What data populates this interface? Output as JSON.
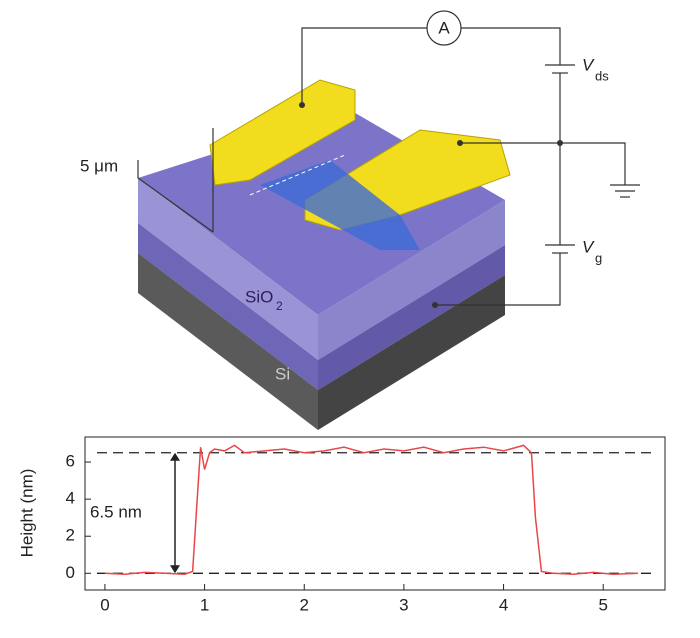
{
  "diagram_labels": {
    "ammeter": "A",
    "vds": "V",
    "vds_sub": "ds",
    "vg": "V",
    "vg_sub": "g",
    "scale": "5 μm",
    "oxide": "SiO",
    "oxide_sub": "2",
    "substrate": "Si"
  },
  "chart_data": {
    "type": "line",
    "y_label": "Height (nm)",
    "x": [
      0,
      0.2,
      0.4,
      0.6,
      0.8,
      0.88,
      0.92,
      0.96,
      1.0,
      1.05,
      1.1,
      1.2,
      1.3,
      1.4,
      1.6,
      1.8,
      2.0,
      2.2,
      2.4,
      2.6,
      2.8,
      3.0,
      3.2,
      3.4,
      3.6,
      3.8,
      4.0,
      4.2,
      4.28,
      4.32,
      4.38,
      4.5,
      4.7,
      4.9,
      5.1,
      5.35
    ],
    "series": [
      {
        "color": "#e8474a",
        "values": [
          0,
          -0.05,
          0.05,
          0,
          -0.05,
          0.1,
          3.5,
          6.8,
          5.6,
          6.5,
          6.7,
          6.6,
          6.9,
          6.5,
          6.6,
          6.7,
          6.5,
          6.6,
          6.8,
          6.5,
          6.7,
          6.6,
          6.8,
          6.5,
          6.7,
          6.8,
          6.6,
          6.9,
          6.5,
          3.0,
          0.1,
          0,
          -0.05,
          0.05,
          -0.05,
          0
        ]
      }
    ],
    "xlim": [
      -0.2,
      5.62
    ],
    "ylim": [
      -0.9,
      7.35
    ],
    "xticks": [
      0,
      1,
      2,
      3,
      4,
      5
    ],
    "yticks": [
      0,
      2,
      4,
      6
    ],
    "reference_lines": [
      0,
      6.5
    ],
    "annotation": "6.5 nm"
  }
}
